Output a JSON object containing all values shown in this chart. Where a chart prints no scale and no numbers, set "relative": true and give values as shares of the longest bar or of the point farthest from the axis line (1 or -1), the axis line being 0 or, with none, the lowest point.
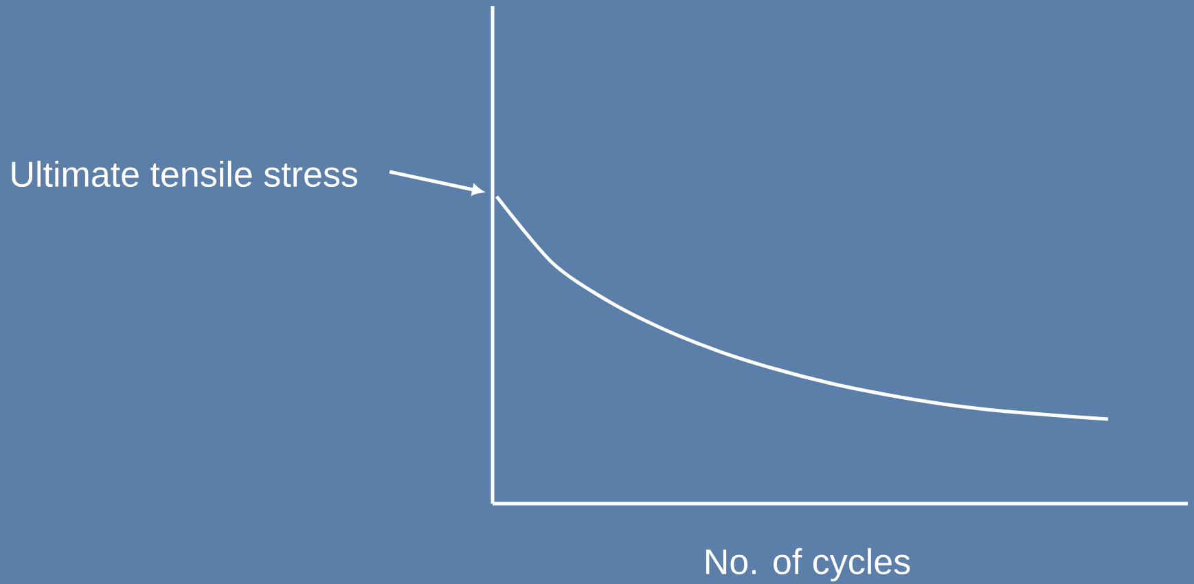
{
  "chart_data": {
    "type": "line",
    "relative": true,
    "xlabel": "No. of cycles",
    "categories": [
      null,
      null,
      null,
      null,
      null,
      null,
      null,
      null,
      null,
      null,
      null,
      null
    ],
    "series": [
      {
        "color": "#ffffff",
        "values": [
          1,
          0.784,
          0.66,
          0.568,
          0.496,
          0.439,
          0.392,
          0.355,
          0.325,
          0.303,
          0.288,
          0.275
        ]
      }
    ],
    "annotations": [
      "Ultimate tensile stress"
    ]
  }
}
